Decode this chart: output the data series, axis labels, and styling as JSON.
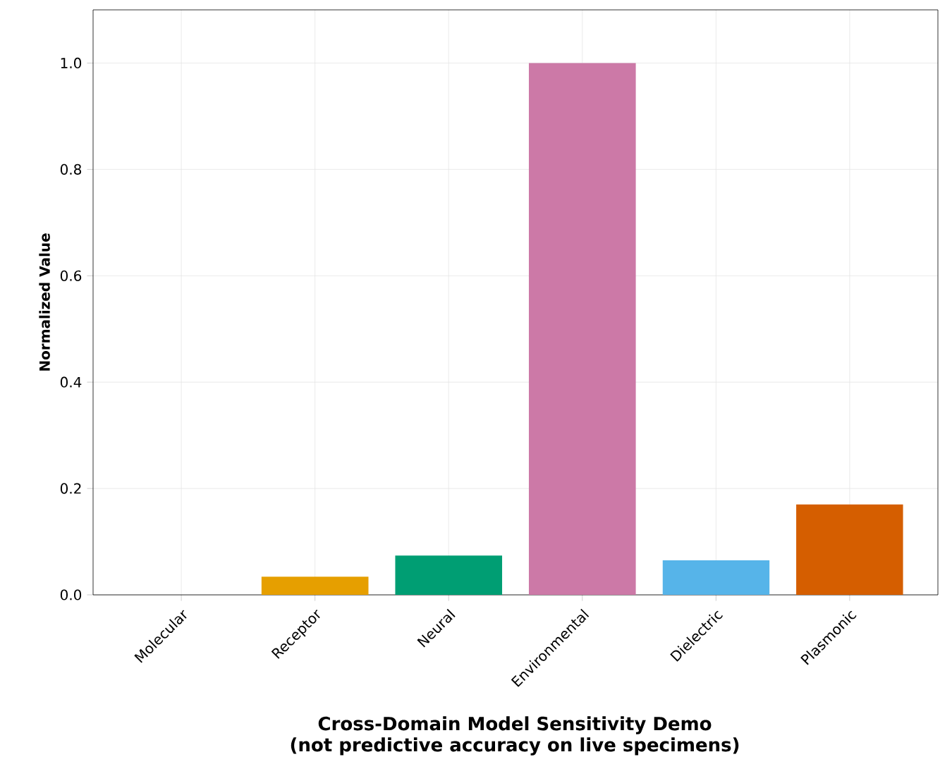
{
  "chart_data": {
    "type": "bar",
    "title": "Cross-Domain Model Sensitivity Demo\n(not predictive accuracy on live specimens)",
    "ylabel": "Normalized Value",
    "categories": [
      "Molecular",
      "Receptor",
      "Neural",
      "Environmental",
      "Dielectric",
      "Plasmonic"
    ],
    "values": [
      0,
      0.034,
      0.074,
      1.0,
      0.065,
      0.17
    ],
    "colors": [
      "#0072b2",
      "#e69f00",
      "#009e73",
      "#cc79a7",
      "#56b4e9",
      "#d55e00"
    ],
    "ylim": [
      0,
      1.1
    ],
    "yticks": [
      {
        "value": 0,
        "label": "0.0"
      },
      0.2,
      0.4,
      0.6,
      0.8,
      {
        "value": 1,
        "label": "1.0"
      }
    ],
    "grid": true
  }
}
